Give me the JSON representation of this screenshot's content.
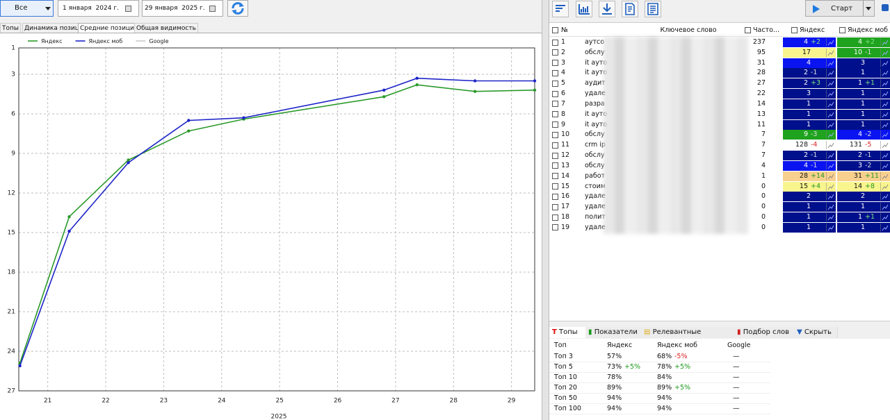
{
  "toolbar": {
    "range": "Все",
    "date_from": "1 января  2024 г.",
    "date_to": "29 января  2025 г."
  },
  "tabs": [
    "Топы",
    "Динамика позиций",
    "Средние позиции",
    "Общая видимость"
  ],
  "chart_data": {
    "type": "line",
    "xlabel": "2025",
    "x": [
      20.52,
      21.37,
      22.39,
      23.43,
      24.38,
      26.8,
      27.37,
      28.37,
      29.4
    ],
    "series": [
      {
        "name": "Яндекс",
        "color": "#2a9a2a",
        "values": [
          24.9,
          13.8,
          9.5,
          7.3,
          6.4,
          4.7,
          3.8,
          4.3,
          4.2
        ]
      },
      {
        "name": "Яндекс моб",
        "color": "#1c24c8",
        "values": [
          25.1,
          14.9,
          9.7,
          6.5,
          6.3,
          4.2,
          3.3,
          3.5,
          3.5
        ]
      },
      {
        "name": "Google",
        "color": "#c8c8c8",
        "values": [
          null,
          null,
          null,
          null,
          null,
          null,
          null,
          null,
          null
        ]
      }
    ],
    "xlim": [
      20.5,
      29.4
    ],
    "ylim": [
      27,
      1
    ],
    "xticks": [
      21,
      22,
      23,
      24,
      25,
      26,
      27,
      28,
      29
    ],
    "yticks": [
      1,
      3,
      6,
      9,
      12,
      15,
      18,
      21,
      24,
      27
    ],
    "grid": true
  },
  "right_toolbar": {
    "start": "Старт"
  },
  "keywords_table": {
    "columns": [
      "№",
      "Ключевое слово",
      "Часто...",
      "Яндекс",
      "Яндекс моб"
    ],
    "rows": [
      {
        "n": 1,
        "keyword": "аутсо",
        "freq": 237,
        "yandex": {
          "pos": 4,
          "change": "+2",
          "color": "#0a14f0"
        },
        "yandex_mob": {
          "pos": 4,
          "change": "+2",
          "color": "#1fa31f"
        }
      },
      {
        "n": 2,
        "keyword": "обслу",
        "freq": 95,
        "yandex": {
          "pos": 17,
          "color": "#f8f48e"
        },
        "yandex_mob": {
          "pos": 10,
          "change": "-1",
          "color": "#1fa31f"
        }
      },
      {
        "n": 3,
        "keyword": "it ауто",
        "freq": 31,
        "yandex": {
          "pos": 4,
          "color": "#0a14f0"
        },
        "yandex_mob": {
          "pos": 3,
          "color": "#00108c"
        }
      },
      {
        "n": 4,
        "keyword": "it ауто",
        "freq": 28,
        "yandex": {
          "pos": 2,
          "change": "-1",
          "color": "#00108c"
        },
        "yandex_mob": {
          "pos": 1,
          "color": "#00108c"
        }
      },
      {
        "n": 5,
        "keyword": "аудит",
        "freq": 27,
        "yandex": {
          "pos": 2,
          "change": "+3",
          "color": "#00108c"
        },
        "yandex_mob": {
          "pos": 1,
          "change": "+1",
          "color": "#00108c"
        }
      },
      {
        "n": 6,
        "keyword": "удале",
        "freq": 22,
        "yandex": {
          "pos": 3,
          "color": "#00108c"
        },
        "yandex_mob": {
          "pos": 1,
          "color": "#00108c"
        }
      },
      {
        "n": 7,
        "keyword": "разра",
        "freq": 14,
        "yandex": {
          "pos": 1,
          "color": "#00108c"
        },
        "yandex_mob": {
          "pos": 1,
          "color": "#00108c"
        }
      },
      {
        "n": 8,
        "keyword": "it ауто",
        "freq": 13,
        "yandex": {
          "pos": 1,
          "color": "#00108c"
        },
        "yandex_mob": {
          "pos": 1,
          "color": "#00108c"
        }
      },
      {
        "n": 9,
        "keyword": "it ауто",
        "freq": 11,
        "yandex": {
          "pos": 1,
          "color": "#00108c"
        },
        "yandex_mob": {
          "pos": 1,
          "color": "#00108c"
        }
      },
      {
        "n": 10,
        "keyword": "обслу",
        "freq": 7,
        "yandex": {
          "pos": 9,
          "change": "-3",
          "color": "#1fa31f"
        },
        "yandex_mob": {
          "pos": 4,
          "change": "-2",
          "color": "#0a14f0"
        }
      },
      {
        "n": 11,
        "keyword": "crm ip",
        "freq": 7,
        "yandex": {
          "pos": 128,
          "change": "-4",
          "color": "#ffffff"
        },
        "yandex_mob": {
          "pos": 131,
          "change": "-5",
          "color": "#ffffff"
        }
      },
      {
        "n": 12,
        "keyword": "обслу",
        "freq": 7,
        "yandex": {
          "pos": 2,
          "change": "-1",
          "color": "#00108c"
        },
        "yandex_mob": {
          "pos": 2,
          "change": "-1",
          "color": "#00108c"
        }
      },
      {
        "n": 13,
        "keyword": "обслу",
        "freq": 4,
        "yandex": {
          "pos": 4,
          "change": "-1",
          "color": "#0a14f0"
        },
        "yandex_mob": {
          "pos": 3,
          "change": "-2",
          "color": "#00108c"
        }
      },
      {
        "n": 14,
        "keyword": "работ",
        "freq": 1,
        "yandex": {
          "pos": 28,
          "change": "+14",
          "color": "#f8d08e"
        },
        "yandex_mob": {
          "pos": 31,
          "change": "+11",
          "color": "#f8d08e"
        }
      },
      {
        "n": 15,
        "keyword": "стоим",
        "freq": 0,
        "yandex": {
          "pos": 15,
          "change": "+4",
          "color": "#f8f48e"
        },
        "yandex_mob": {
          "pos": 14,
          "change": "+8",
          "color": "#f8f48e"
        }
      },
      {
        "n": 16,
        "keyword": "удале",
        "freq": 0,
        "yandex": {
          "pos": 2,
          "color": "#00108c"
        },
        "yandex_mob": {
          "pos": 2,
          "color": "#00108c"
        }
      },
      {
        "n": 17,
        "keyword": "удале",
        "freq": 0,
        "yandex": {
          "pos": 1,
          "color": "#00108c"
        },
        "yandex_mob": {
          "pos": 1,
          "color": "#00108c"
        }
      },
      {
        "n": 18,
        "keyword": "полит",
        "freq": 0,
        "yandex": {
          "pos": 1,
          "color": "#00108c"
        },
        "yandex_mob": {
          "pos": 1,
          "change": "+1",
          "color": "#00108c"
        }
      },
      {
        "n": 19,
        "keyword": "удале",
        "freq": 0,
        "yandex": {
          "pos": 1,
          "color": "#00108c"
        },
        "yandex_mob": {
          "pos": 1,
          "color": "#00108c"
        }
      }
    ]
  },
  "bottom_tabs": [
    "Топы",
    "Показатели",
    "Релевантные страницы",
    "Подбор слов",
    "Скрыть"
  ],
  "tops_table": {
    "columns": [
      "Топ",
      "Яндекс",
      "Яндекс моб",
      "Google"
    ],
    "rows": [
      {
        "top": "Топ 3",
        "yandex": {
          "value": "57%"
        },
        "yandex_mob": {
          "value": "68%",
          "change": "-5%"
        },
        "google": "—"
      },
      {
        "top": "Топ 5",
        "yandex": {
          "value": "73%",
          "change": "+5%"
        },
        "yandex_mob": {
          "value": "78%",
          "change": "+5%"
        },
        "google": "—"
      },
      {
        "top": "Топ 10",
        "yandex": {
          "value": "78%"
        },
        "yandex_mob": {
          "value": "84%"
        },
        "google": "—"
      },
      {
        "top": "Топ 20",
        "yandex": {
          "value": "89%"
        },
        "yandex_mob": {
          "value": "89%",
          "change": "+5%"
        },
        "google": "—"
      },
      {
        "top": "Топ 50",
        "yandex": {
          "value": "94%"
        },
        "yandex_mob": {
          "value": "94%"
        },
        "google": "—"
      },
      {
        "top": "Топ 100",
        "yandex": {
          "value": "94%"
        },
        "yandex_mob": {
          "value": "94%"
        },
        "google": "—"
      }
    ]
  }
}
